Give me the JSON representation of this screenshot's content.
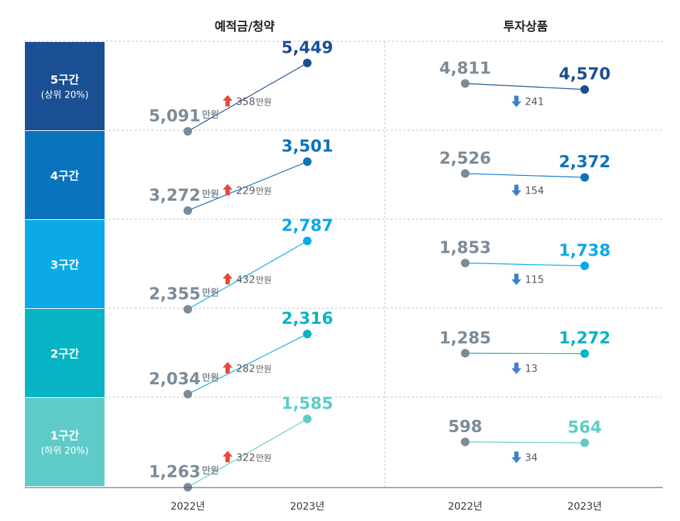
{
  "chart_data": {
    "type": "line",
    "columns": [
      "예적금/청약",
      "투자상품"
    ],
    "x": [
      "2022년",
      "2023년"
    ],
    "unit": "만원",
    "rows": [
      {
        "label": "5구간",
        "sublabel": "(상위 20%)",
        "color": "#1b4f93",
        "savings": {
          "y2022": "5,091",
          "y2023": "5,449",
          "change": "358",
          "direction": "up"
        },
        "investment": {
          "y2022": "4,811",
          "y2023": "4,570",
          "change": "241",
          "direction": "down"
        }
      },
      {
        "label": "4구간",
        "sublabel": "",
        "color": "#0a73bd",
        "savings": {
          "y2022": "3,272",
          "y2023": "3,501",
          "change": "229",
          "direction": "up"
        },
        "investment": {
          "y2022": "2,526",
          "y2023": "2,372",
          "change": "154",
          "direction": "down"
        }
      },
      {
        "label": "3구간",
        "sublabel": "",
        "color": "#0ba9e8",
        "savings": {
          "y2022": "2,355",
          "y2023": "2,787",
          "change": "432",
          "direction": "up"
        },
        "investment": {
          "y2022": "1,853",
          "y2023": "1,738",
          "change": "115",
          "direction": "down"
        }
      },
      {
        "label": "2구간",
        "sublabel": "",
        "color": "#08b4c4",
        "savings": {
          "y2022": "2,034",
          "y2023": "2,316",
          "change": "282",
          "direction": "up"
        },
        "investment": {
          "y2022": "1,285",
          "y2023": "1,272",
          "change": "13",
          "direction": "down"
        }
      },
      {
        "label": "1구간",
        "sublabel": "(하위 20%)",
        "color": "#5fcbc8",
        "savings": {
          "y2022": "1,263",
          "y2023": "1,585",
          "change": "322",
          "direction": "up"
        },
        "investment": {
          "y2022": "598",
          "y2023": "564",
          "change": "34",
          "direction": "down"
        }
      }
    ]
  },
  "colors": {
    "old_point": "#7c8b98",
    "up_arrow": "#e8473a",
    "down_arrow": "#3f7fd0",
    "grid": "#b8c2cc"
  }
}
